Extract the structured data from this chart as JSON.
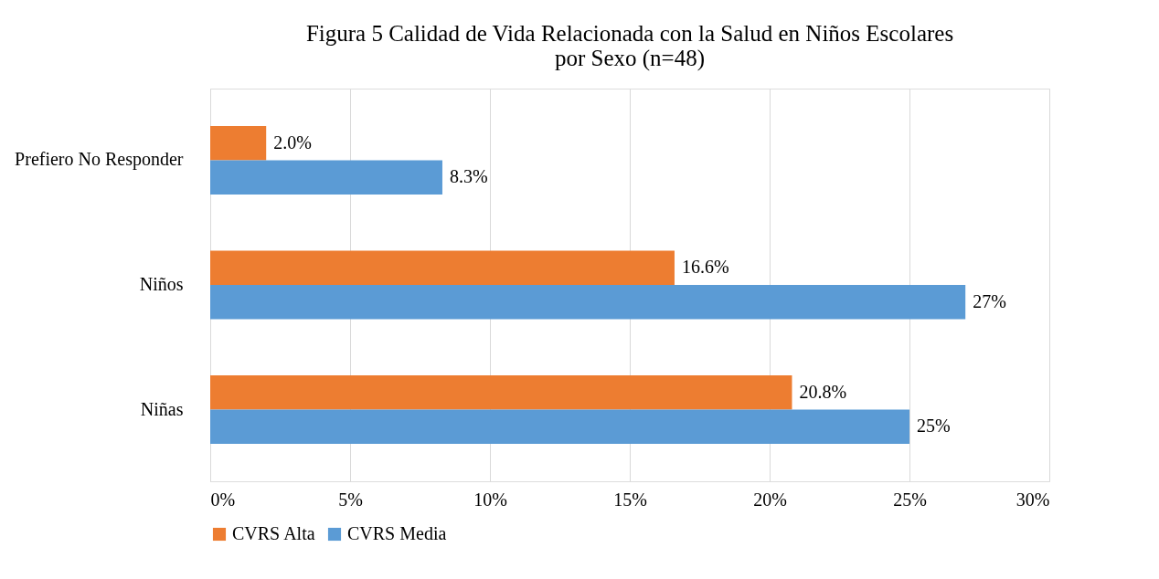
{
  "chart_data": {
    "type": "bar",
    "orientation": "horizontal",
    "title": "Figura 5 Calidad de Vida Relacionada con la Salud en Niños Escolares por Sexo (n=48)",
    "categories": [
      "Prefiero No Responder",
      "Niños",
      "Niñas"
    ],
    "series": [
      {
        "name": "CVRS Alta",
        "color": "#ed7d31",
        "values": [
          2.0,
          16.6,
          20.8
        ],
        "value_labels": [
          "2.0%",
          "16.6%",
          "20.8%"
        ]
      },
      {
        "name": "CVRS Media",
        "color": "#5b9bd5",
        "values": [
          8.3,
          27,
          25
        ],
        "value_labels": [
          "8.3%",
          "27%",
          "25%"
        ]
      }
    ],
    "xlim": [
      0,
      30
    ],
    "xticks": [
      {
        "value": 0,
        "label": "0%"
      },
      {
        "value": 5,
        "label": "5%"
      },
      {
        "value": 10,
        "label": "10%"
      },
      {
        "value": 15,
        "label": "15%"
      },
      {
        "value": 20,
        "label": "20%"
      },
      {
        "value": 25,
        "label": "25%"
      },
      {
        "value": 30,
        "label": "30%"
      }
    ],
    "grid": "x",
    "legend": "bottom"
  }
}
